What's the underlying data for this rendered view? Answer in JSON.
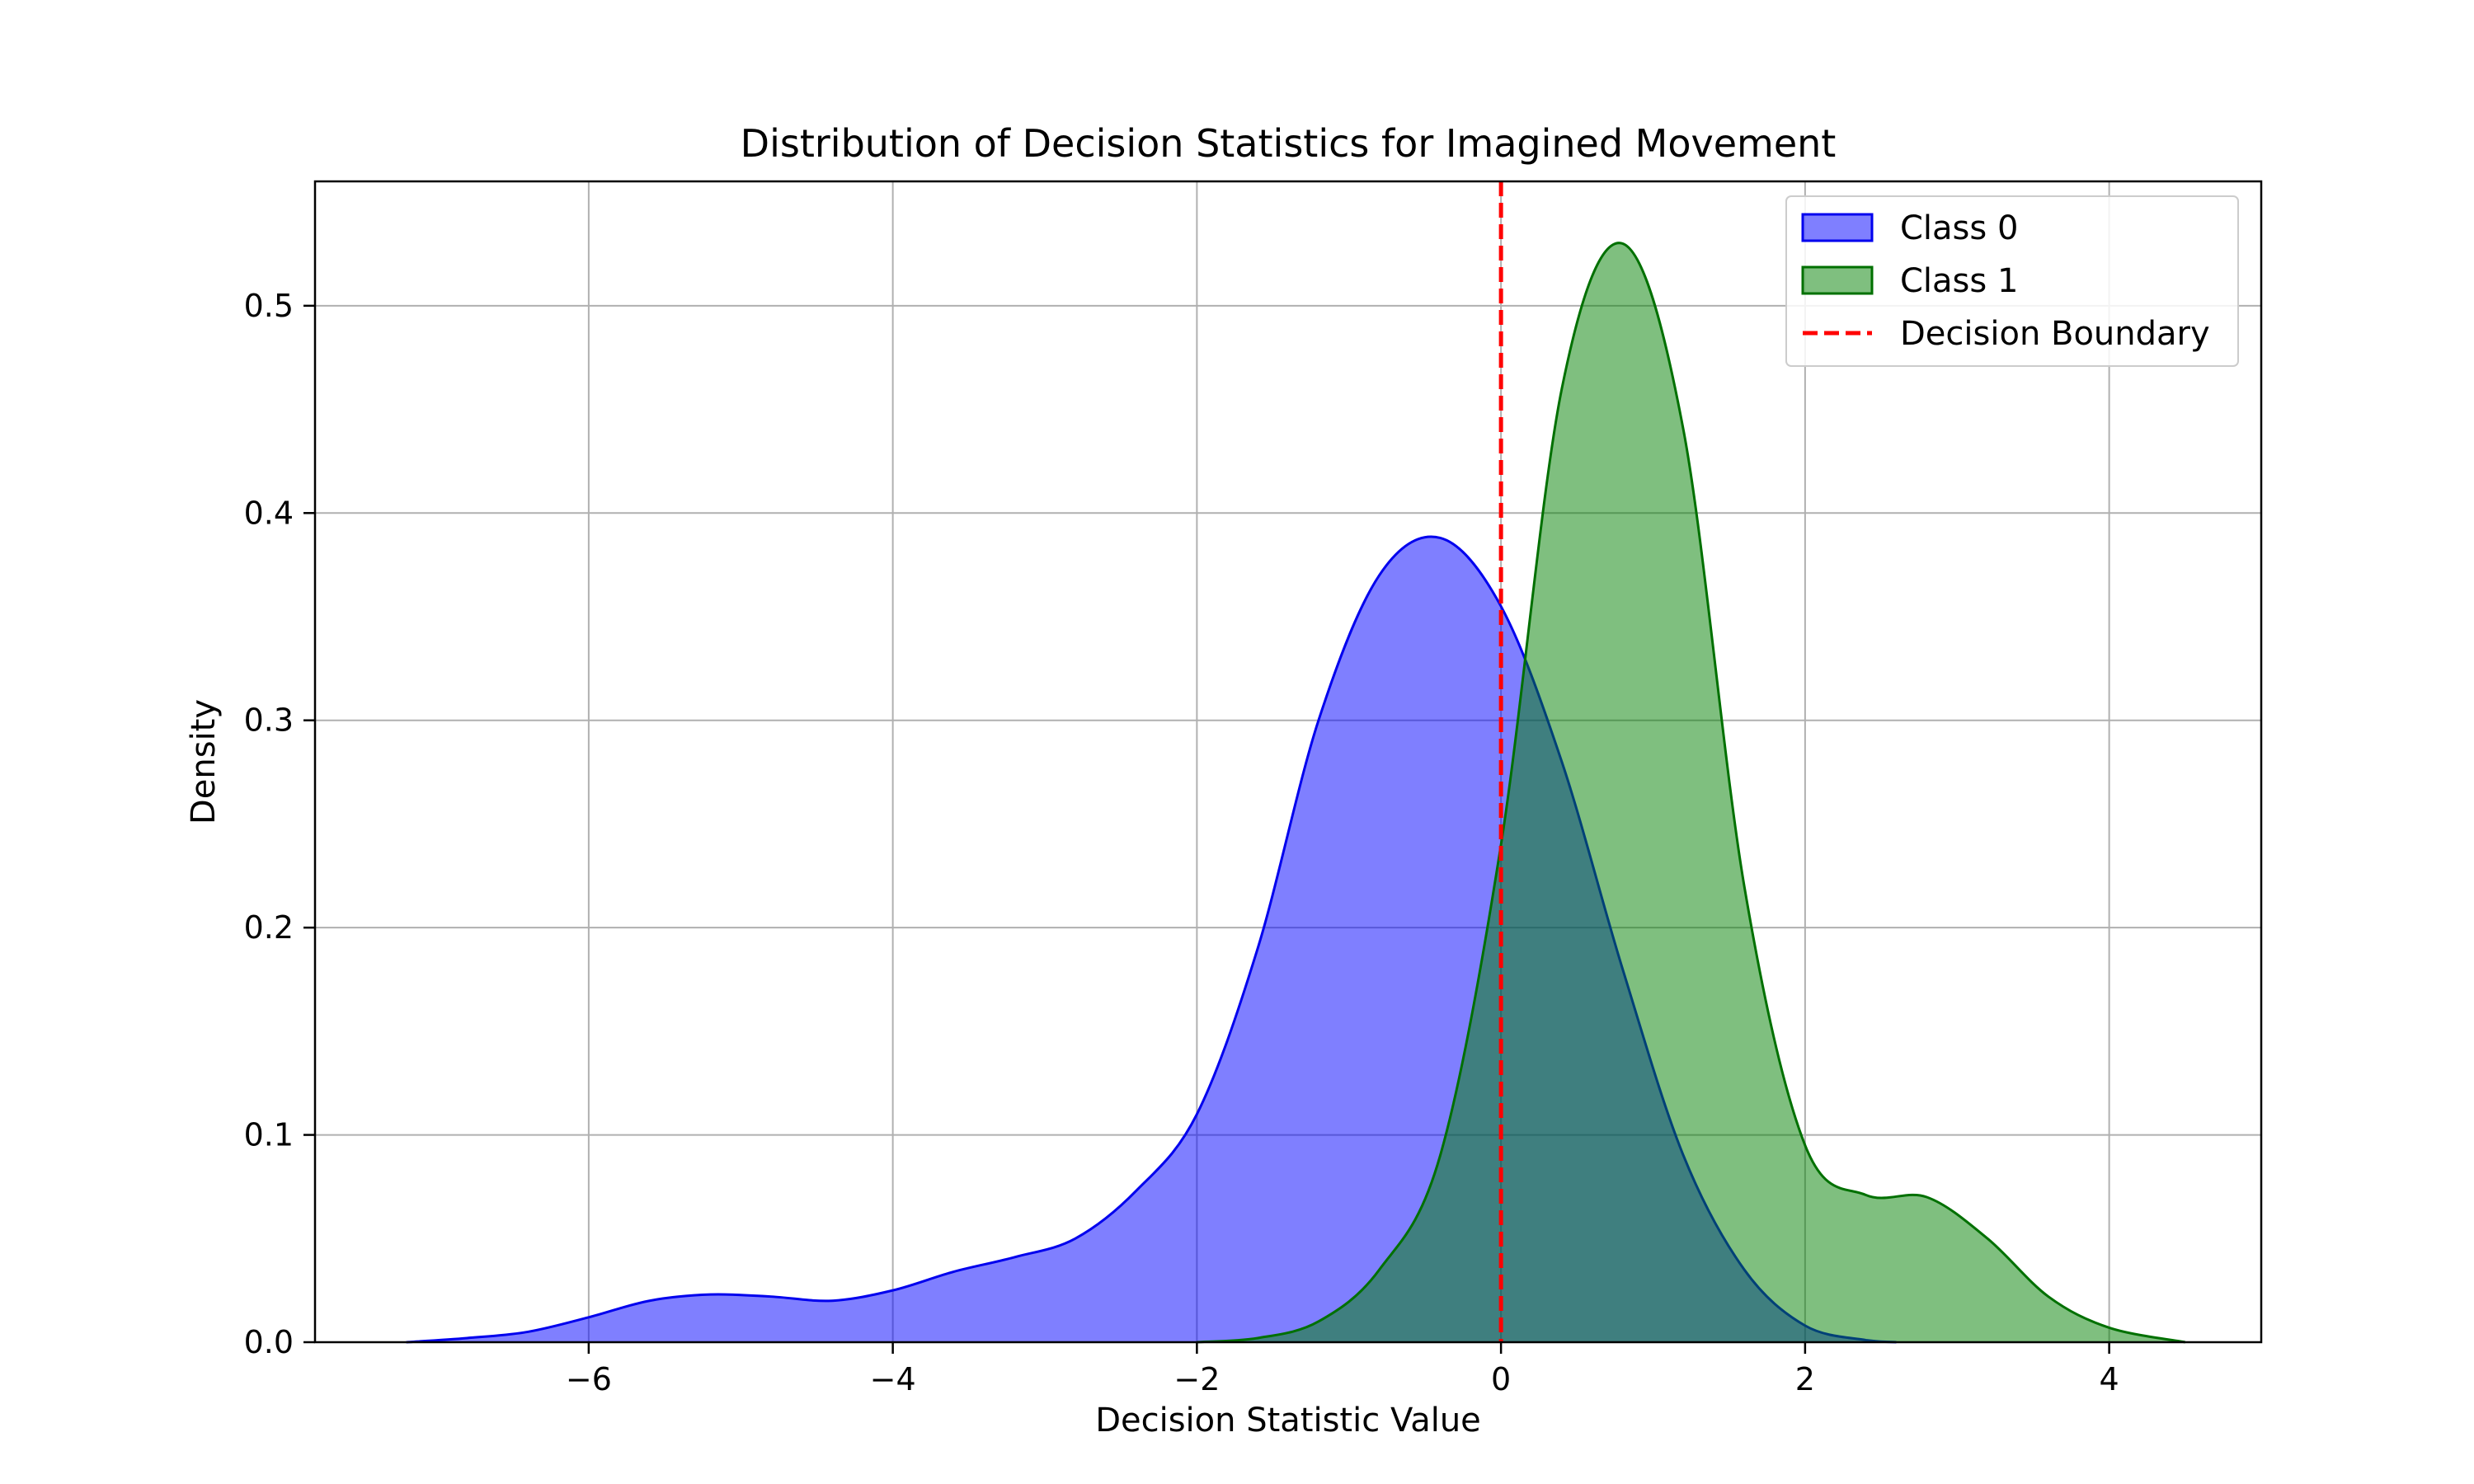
{
  "chart_data": {
    "type": "area",
    "title": "Distribution of Decision Statistics for Imagined Movement",
    "xlabel": "Decision Statistic Value",
    "ylabel": "Density",
    "xlim": [
      -7.8,
      5.0
    ],
    "ylim": [
      0.0,
      0.56
    ],
    "xticks": [
      -6,
      -4,
      -2,
      0,
      2,
      4
    ],
    "xtick_labels": [
      "−6",
      "−4",
      "−2",
      "0",
      "2",
      "4"
    ],
    "yticks": [
      0.0,
      0.1,
      0.2,
      0.3,
      0.4,
      0.5
    ],
    "ytick_labels": [
      "0.0",
      "0.1",
      "0.2",
      "0.3",
      "0.4",
      "0.5"
    ],
    "grid": true,
    "legend_position": "top-right",
    "decision_boundary": {
      "x": 0,
      "name": "Decision Boundary",
      "color": "#ff0000",
      "style": "dashed"
    },
    "series": [
      {
        "name": "Class 0",
        "fill": "#0000ff",
        "line": "#0000ee",
        "alpha": 0.5,
        "points": [
          [
            -7.2,
            0.0
          ],
          [
            -6.8,
            0.002
          ],
          [
            -6.4,
            0.005
          ],
          [
            -6.0,
            0.012
          ],
          [
            -5.6,
            0.02
          ],
          [
            -5.2,
            0.023
          ],
          [
            -4.8,
            0.022
          ],
          [
            -4.4,
            0.02
          ],
          [
            -4.0,
            0.025
          ],
          [
            -3.6,
            0.034
          ],
          [
            -3.2,
            0.041
          ],
          [
            -2.8,
            0.05
          ],
          [
            -2.4,
            0.073
          ],
          [
            -2.0,
            0.11
          ],
          [
            -1.6,
            0.19
          ],
          [
            -1.2,
            0.3
          ],
          [
            -0.8,
            0.37
          ],
          [
            -0.4,
            0.388
          ],
          [
            0.0,
            0.355
          ],
          [
            0.4,
            0.28
          ],
          [
            0.8,
            0.18
          ],
          [
            1.2,
            0.09
          ],
          [
            1.6,
            0.035
          ],
          [
            2.0,
            0.008
          ],
          [
            2.4,
            0.001
          ],
          [
            2.6,
            0.0
          ]
        ]
      },
      {
        "name": "Class 1",
        "fill": "#008000",
        "line": "#007000",
        "alpha": 0.5,
        "points": [
          [
            -2.0,
            0.0
          ],
          [
            -1.6,
            0.002
          ],
          [
            -1.2,
            0.01
          ],
          [
            -0.8,
            0.035
          ],
          [
            -0.4,
            0.09
          ],
          [
            0.0,
            0.24
          ],
          [
            0.4,
            0.46
          ],
          [
            0.8,
            0.53
          ],
          [
            1.2,
            0.44
          ],
          [
            1.6,
            0.22
          ],
          [
            2.0,
            0.095
          ],
          [
            2.4,
            0.071
          ],
          [
            2.8,
            0.07
          ],
          [
            3.2,
            0.05
          ],
          [
            3.6,
            0.022
          ],
          [
            4.0,
            0.007
          ],
          [
            4.5,
            0.0
          ]
        ]
      }
    ]
  }
}
